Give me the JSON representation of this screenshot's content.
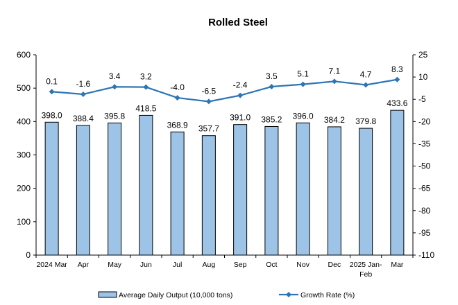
{
  "chart_data": {
    "type": "bar",
    "title": "Rolled Steel",
    "categories": [
      "2024 Mar",
      "Apr",
      "May",
      "Jun",
      "Jul",
      "Aug",
      "Sep",
      "Oct",
      "Nov",
      "Dec",
      "2025 Jan-Feb",
      "Mar"
    ],
    "category_lines": [
      [
        "2024 Mar"
      ],
      [
        "Apr"
      ],
      [
        "May"
      ],
      [
        "Jun"
      ],
      [
        "Jul"
      ],
      [
        "Aug"
      ],
      [
        "Sep"
      ],
      [
        "Oct"
      ],
      [
        "Nov"
      ],
      [
        "Dec"
      ],
      [
        "2025 Jan-",
        "Feb"
      ],
      [
        "Mar"
      ]
    ],
    "series": [
      {
        "name": "Average Daily Output (10,000 tons)",
        "type": "bar",
        "axis": "left",
        "values": [
          398.0,
          388.4,
          395.8,
          418.5,
          368.9,
          357.7,
          391.0,
          385.2,
          396.0,
          384.2,
          379.8,
          433.6
        ],
        "labels": [
          "398.0",
          "388.4",
          "395.8",
          "418.5",
          "368.9",
          "357.7",
          "391.0",
          "385.2",
          "396.0",
          "384.2",
          "379.8",
          "433.6"
        ],
        "color": "#9DC3E6"
      },
      {
        "name": "Growth Rate (%)",
        "type": "line",
        "axis": "right",
        "values": [
          0.1,
          -1.6,
          3.4,
          3.2,
          -4.0,
          -6.5,
          -2.4,
          3.5,
          5.1,
          7.1,
          4.7,
          8.3
        ],
        "labels": [
          "0.1",
          "-1.6",
          "3.4",
          "3.2",
          "-4.0",
          "-6.5",
          "-2.4",
          "3.5",
          "5.1",
          "7.1",
          "4.7",
          "8.3"
        ],
        "color": "#2E75B6"
      }
    ],
    "y_left": {
      "min": 0,
      "max": 600,
      "ticks": [
        "0",
        "100",
        "200",
        "300",
        "400",
        "500",
        "600"
      ]
    },
    "y_right": {
      "min": -110,
      "max": 25,
      "ticks": [
        "25",
        "10",
        "-5",
        "-20",
        "-35",
        "-50",
        "-65",
        "-80",
        "-95",
        "-110"
      ]
    },
    "grid": false,
    "legend": "bottom"
  }
}
